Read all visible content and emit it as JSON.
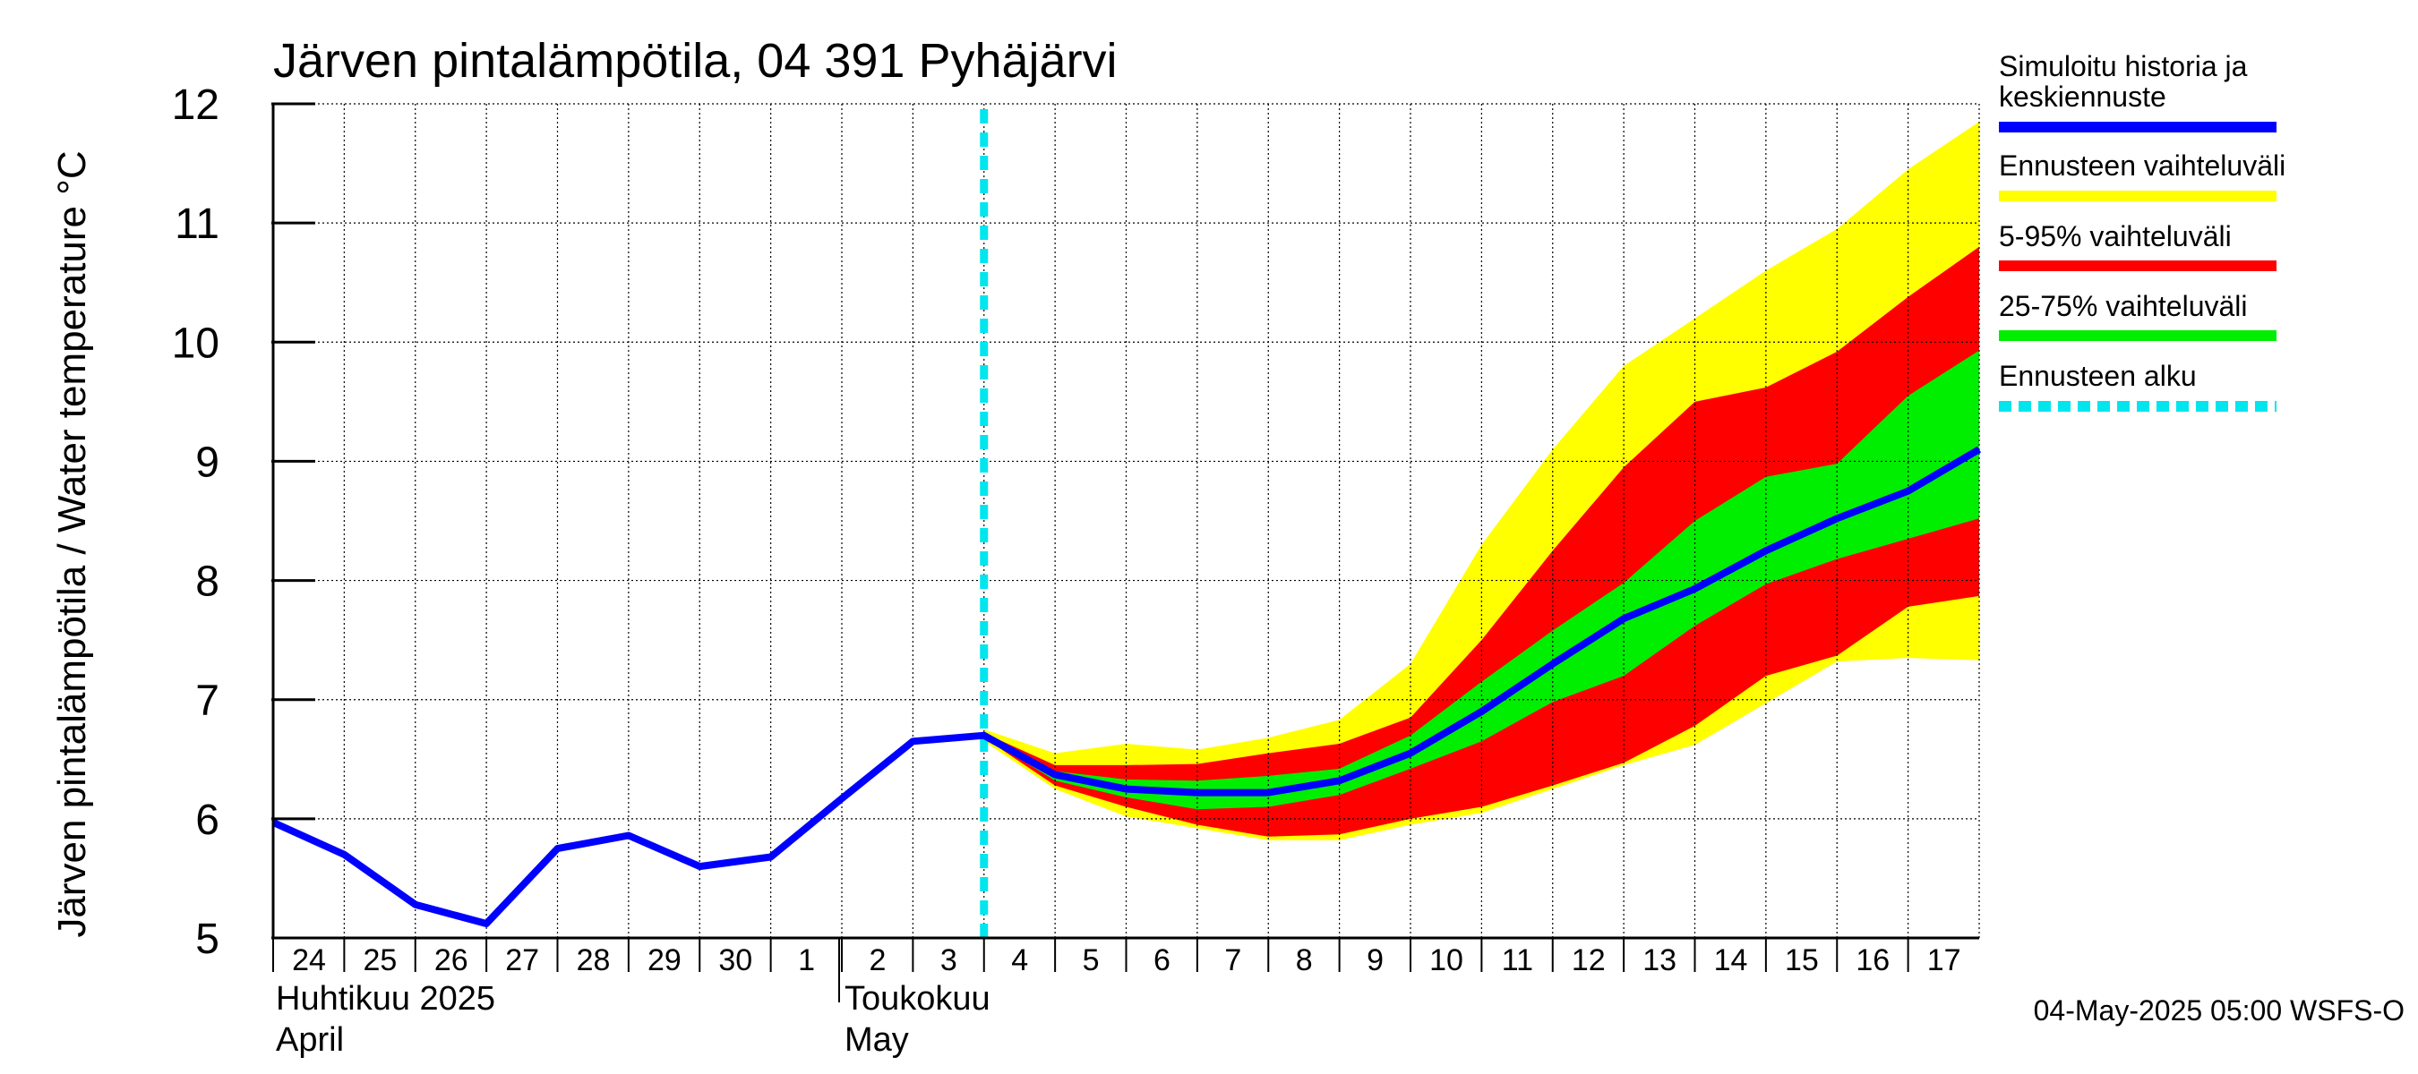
{
  "chart_data": {
    "type": "area",
    "title": "Järven pintalämpötila, 04 391 Pyhäjärvi",
    "ylabel": "Järven pintalämpötila / Water temperature °C",
    "xlabel": "",
    "ylim": [
      5,
      12
    ],
    "yticks": [
      "5",
      "6",
      "7",
      "8",
      "9",
      "10",
      "11",
      "12"
    ],
    "xlim": [
      0,
      24
    ],
    "xticks": [
      "24",
      "25",
      "26",
      "27",
      "28",
      "29",
      "30",
      "1",
      "2",
      "3",
      "4",
      "5",
      "6",
      "7",
      "8",
      "9",
      "10",
      "11",
      "12",
      "13",
      "14",
      "15",
      "16",
      "17"
    ],
    "month_labels": [
      {
        "x": 0,
        "fi": "Huhtikuu  2025",
        "en": "April"
      },
      {
        "x": 8,
        "fi": "Toukokuu",
        "en": "May"
      }
    ],
    "grid": true,
    "forecast_start": 10,
    "history": {
      "name": "Simuloitu historia ja keskiennuste",
      "x": [
        0,
        1,
        2,
        3,
        4,
        5,
        6,
        7,
        8,
        9,
        10
      ],
      "values": [
        5.97,
        5.7,
        5.28,
        5.12,
        5.75,
        5.86,
        5.6,
        5.68,
        6.17,
        6.65,
        6.7
      ]
    },
    "series": [
      {
        "name": "Simuloitu historia ja keskiennuste",
        "x": [
          10,
          11,
          12,
          13,
          14,
          15,
          16,
          17,
          18,
          19,
          20,
          21,
          22,
          23,
          24
        ],
        "values": [
          6.7,
          6.37,
          6.25,
          6.22,
          6.22,
          6.32,
          6.55,
          6.9,
          7.3,
          7.68,
          7.93,
          8.25,
          8.52,
          8.75,
          9.1
        ]
      }
    ],
    "bands": [
      {
        "name": "Ennusteen vaihteluväli",
        "color": "#ffff00",
        "x": [
          10,
          11,
          12,
          13,
          14,
          15,
          16,
          17,
          18,
          19,
          20,
          21,
          22,
          23,
          24
        ],
        "upper": [
          6.75,
          6.55,
          6.63,
          6.58,
          6.68,
          6.83,
          7.3,
          8.3,
          9.1,
          9.8,
          10.2,
          10.6,
          10.95,
          11.45,
          11.85
        ],
        "lower": [
          6.65,
          6.25,
          6.02,
          5.92,
          5.82,
          5.82,
          5.95,
          6.05,
          6.25,
          6.45,
          6.62,
          6.97,
          7.32,
          7.35,
          7.33
        ]
      },
      {
        "name": "5-95% vaihteluväli",
        "color": "#ff0000",
        "x": [
          10,
          11,
          12,
          13,
          14,
          15,
          16,
          17,
          18,
          19,
          20,
          21,
          22,
          23,
          24
        ],
        "upper": [
          6.72,
          6.45,
          6.45,
          6.46,
          6.55,
          6.63,
          6.85,
          7.5,
          8.25,
          8.95,
          9.5,
          9.62,
          9.92,
          10.38,
          10.8
        ],
        "lower": [
          6.68,
          6.28,
          6.1,
          5.95,
          5.85,
          5.87,
          6.0,
          6.1,
          6.28,
          6.47,
          6.78,
          7.2,
          7.37,
          7.78,
          7.87
        ]
      },
      {
        "name": "25-75% vaihteluväli",
        "color": "#00ee00",
        "x": [
          10,
          11,
          12,
          13,
          14,
          15,
          16,
          17,
          18,
          19,
          20,
          21,
          22,
          23,
          24
        ],
        "upper": [
          6.71,
          6.4,
          6.33,
          6.32,
          6.36,
          6.42,
          6.7,
          7.15,
          7.58,
          7.98,
          8.5,
          8.87,
          8.98,
          9.55,
          9.93
        ],
        "lower": [
          6.69,
          6.32,
          6.18,
          6.08,
          6.1,
          6.2,
          6.42,
          6.65,
          6.98,
          7.2,
          7.62,
          7.97,
          8.18,
          8.35,
          8.52
        ]
      }
    ],
    "legend": {
      "position": "right",
      "items": [
        {
          "label": "Simuloitu historia ja keskiennuste",
          "line1": "Simuloitu historia ja",
          "line2": "keskiennuste",
          "color": "#0000ff",
          "style": "solid"
        },
        {
          "label": "Ennusteen vaihteluväli",
          "color": "#ffff00",
          "style": "solid"
        },
        {
          "label": "5-95% vaihteluväli",
          "color": "#ff0000",
          "style": "solid"
        },
        {
          "label": "25-75% vaihteluväli",
          "color": "#00ee00",
          "style": "solid"
        },
        {
          "label": "Ennusteen alku",
          "color": "#00e5ee",
          "style": "dashed"
        }
      ]
    },
    "colors": {
      "history_line": "#0000ff",
      "forecast_start_line": "#00e5ee",
      "grid": "#000000"
    }
  },
  "footer": "04-May-2025 05:00 WSFS-O"
}
